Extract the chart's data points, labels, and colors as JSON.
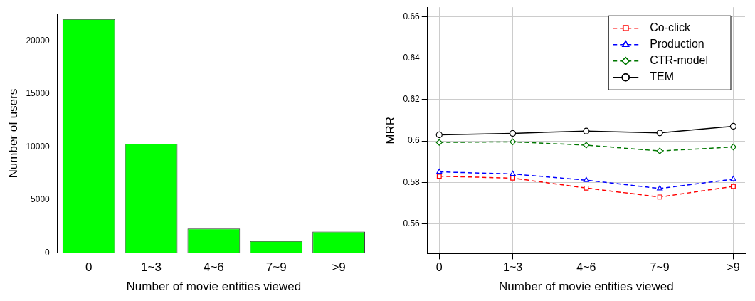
{
  "chart_data": [
    {
      "type": "bar",
      "xlabel": "Number of movie entities viewed",
      "ylabel": "Number of users",
      "categories": [
        "0",
        "1~3",
        "4~6",
        "7~9",
        ">9"
      ],
      "values": [
        22050,
        10280,
        2280,
        1100,
        1990
      ],
      "color": "#00ff00",
      "ylim": [
        0,
        22500
      ],
      "yticks": [
        0,
        5000,
        10000,
        15000,
        20000
      ],
      "grid": false
    },
    {
      "type": "line",
      "xlabel": "Number of movie entities viewed",
      "ylabel": "MRR",
      "categories": [
        "0",
        "1~3",
        "4~6",
        "7~9",
        ">9"
      ],
      "ylim": [
        0.5457,
        0.6645
      ],
      "yticks": [
        0.56,
        0.58,
        0.6,
        0.62,
        0.64,
        0.66
      ],
      "grid": true,
      "legend": "top right",
      "series": [
        {
          "name": "Co-click",
          "color": "#ff0000",
          "marker": "square",
          "line_style": "dashed",
          "values": [
            0.583,
            0.5821,
            0.5773,
            0.573,
            0.5781
          ]
        },
        {
          "name": "Production",
          "color": "#0000ff",
          "marker": "triangle",
          "line_style": "dashed",
          "values": [
            0.5851,
            0.5841,
            0.5811,
            0.5771,
            0.5816
          ]
        },
        {
          "name": "CTR-model",
          "color": "#007700",
          "marker": "diamond",
          "line_style": "dashed",
          "values": [
            0.5993,
            0.5996,
            0.598,
            0.5952,
            0.5971
          ]
        },
        {
          "name": "TEM",
          "color": "#000000",
          "marker": "circle",
          "line_style": "solid",
          "values": [
            0.603,
            0.6037,
            0.6048,
            0.6039,
            0.6071
          ]
        }
      ]
    }
  ]
}
